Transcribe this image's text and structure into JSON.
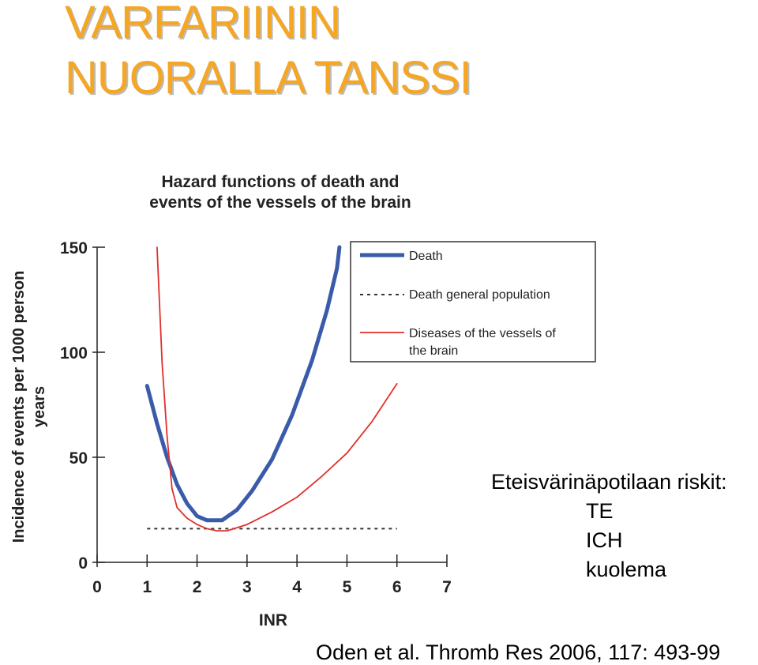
{
  "slide": {
    "title_lines": [
      "VARFARIININ",
      "NUORALLA TANSSI"
    ],
    "side_note": {
      "heading": "Eteisvärinäpotilaan riskit:",
      "risks": [
        "TE",
        "ICH",
        "kuolema"
      ]
    },
    "citation": "Oden et al. Thromb Res 2006, 117: 493-99",
    "colors": {
      "title": "#f5a623",
      "title_shadow": "#bbbbbb"
    }
  },
  "chart_data": {
    "type": "line",
    "title": "Hazard functions of death and events of the vessels of the brain",
    "title_lines": [
      "Hazard functions of death and",
      "events of the vessels of the brain"
    ],
    "xlabel": "INR",
    "ylabel_lines": [
      "Incidence of events per 1000 person",
      "years"
    ],
    "xlim": [
      0,
      7
    ],
    "ylim": [
      0,
      150
    ],
    "x_ticks": [
      0,
      1,
      2,
      3,
      4,
      5,
      6,
      7
    ],
    "y_ticks": [
      0,
      50,
      100,
      150
    ],
    "grid": false,
    "legend_position": "top-right",
    "series": [
      {
        "name": "Death",
        "style": "solid-thick",
        "color": "#3a5ba9",
        "x": [
          1.0,
          1.2,
          1.4,
          1.6,
          1.8,
          2.0,
          2.2,
          2.5,
          2.8,
          3.1,
          3.5,
          3.9,
          4.3,
          4.6,
          4.8,
          4.85
        ],
        "y": [
          84,
          66,
          50,
          37,
          28,
          22,
          20,
          20,
          25,
          34,
          49,
          70,
          96,
          120,
          140,
          150
        ]
      },
      {
        "name": "Death general population",
        "style": "dotted",
        "color": "#333333",
        "x": [
          1.0,
          6.0
        ],
        "y": [
          16,
          16
        ]
      },
      {
        "name": "Diseases of the vessels of the brain",
        "style": "solid-thin",
        "color": "#e0302a",
        "x": [
          1.2,
          1.3,
          1.4,
          1.5,
          1.6,
          1.8,
          2.0,
          2.2,
          2.4,
          2.6,
          2.8,
          3.0,
          3.5,
          4.0,
          4.5,
          5.0,
          5.5,
          6.0
        ],
        "y": [
          150,
          95,
          60,
          35,
          26,
          21,
          18,
          16,
          15,
          15,
          16.5,
          18,
          24,
          31,
          41,
          52,
          67,
          85
        ]
      }
    ],
    "legend_labels": {
      "death": [
        "Death"
      ],
      "general": [
        "Death general population"
      ],
      "brain": [
        "Diseases of the vessels of",
        "the brain"
      ]
    }
  }
}
